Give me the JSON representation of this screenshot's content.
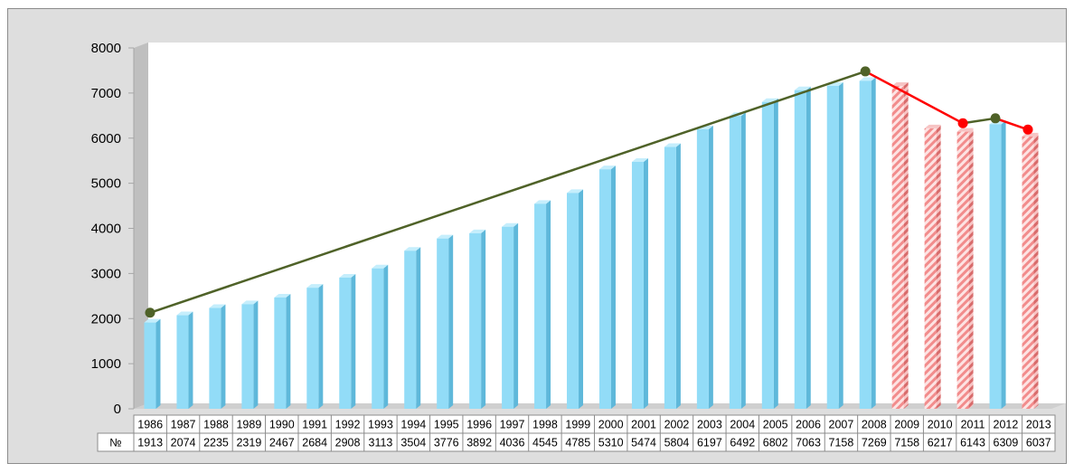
{
  "chart_data": {
    "type": "bar",
    "categories": [
      "1986",
      "1987",
      "1988",
      "1989",
      "1990",
      "1991",
      "1992",
      "1993",
      "1994",
      "1995",
      "1996",
      "1997",
      "1998",
      "1999",
      "2000",
      "2001",
      "2002",
      "2003",
      "2004",
      "2005",
      "2006",
      "2007",
      "2008",
      "2009",
      "2010",
      "2011",
      "2012",
      "2013"
    ],
    "values": [
      1913,
      2074,
      2235,
      2319,
      2467,
      2684,
      2908,
      3113,
      3504,
      3776,
      3892,
      4036,
      4545,
      4785,
      5310,
      5474,
      5804,
      6197,
      6492,
      6802,
      7063,
      7158,
      7269,
      7158,
      6217,
      6143,
      6309,
      6037
    ],
    "series_label": "№",
    "ylim": [
      0,
      8000
    ],
    "yticks": [
      0,
      1000,
      2000,
      3000,
      4000,
      5000,
      6000,
      7000,
      8000
    ],
    "grid": false,
    "legend": "data table below chart",
    "bar_styles": [
      "solid",
      "solid",
      "solid",
      "solid",
      "solid",
      "solid",
      "solid",
      "solid",
      "solid",
      "solid",
      "solid",
      "solid",
      "solid",
      "solid",
      "solid",
      "solid",
      "solid",
      "solid",
      "solid",
      "solid",
      "solid",
      "solid",
      "solid",
      "hatched",
      "hatched",
      "hatched",
      "solid",
      "hatched"
    ],
    "trend_lines": [
      {
        "color": "#4f6228",
        "points": [
          [
            "1986",
            2130
          ],
          [
            "2008",
            7480
          ]
        ]
      },
      {
        "color": "#ff0000",
        "points": [
          [
            "2008",
            7480
          ],
          [
            "2011",
            6330
          ]
        ]
      },
      {
        "color": "#4f6228",
        "points": [
          [
            "2011",
            6330
          ],
          [
            "2012",
            6440
          ]
        ]
      },
      {
        "color": "#ff0000",
        "points": [
          [
            "2012",
            6440
          ],
          [
            "2013",
            6190
          ]
        ]
      }
    ],
    "markers": [
      {
        "category": "1986",
        "value": 2130,
        "color": "#4f6228"
      },
      {
        "category": "2008",
        "value": 7480,
        "color": "#4f6228"
      },
      {
        "category": "2011",
        "value": 6330,
        "color": "#ff0000"
      },
      {
        "category": "2012",
        "value": 6440,
        "color": "#4f6228"
      },
      {
        "category": "2013",
        "value": 6190,
        "color": "#ff0000"
      }
    ],
    "colors": {
      "bar_front": "#92dcf7",
      "bar_side": "#5fb8da",
      "bar_top": "#c5eefc",
      "hatch": "#f4a6a6",
      "plot_background": "#e8e8e8",
      "frame": "#d9d9d9"
    }
  }
}
